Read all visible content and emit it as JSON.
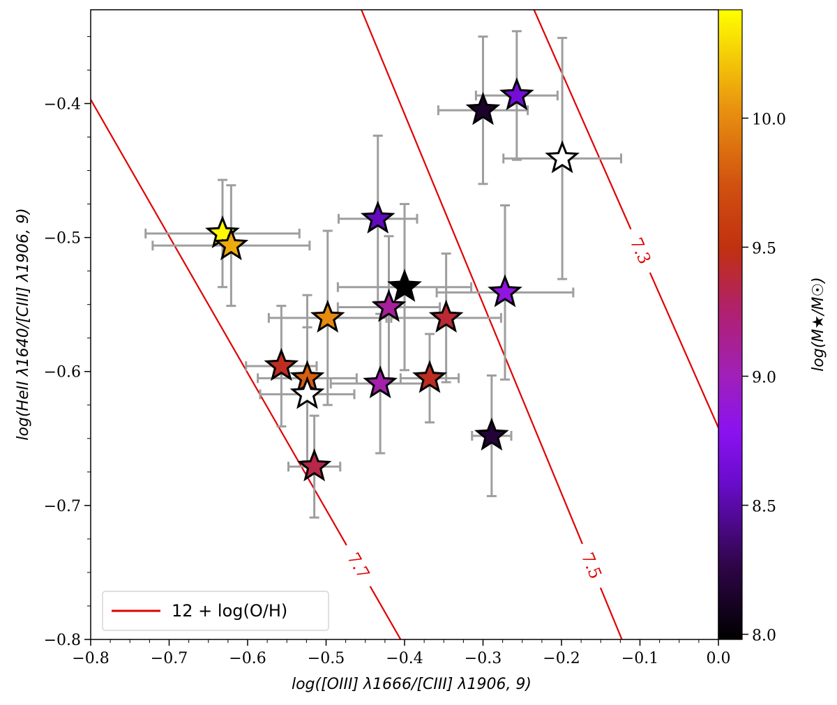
{
  "chart_data": {
    "type": "scatter",
    "xlabel": "log([OIII] λ1666/[CIII] λ1906, 9)",
    "ylabel": "log(HeII λ1640/[CIII] λ1906, 9)",
    "xlim": [
      -0.8,
      0.0
    ],
    "ylim": [
      -0.8,
      -0.33
    ],
    "x_ticks": [
      -0.8,
      -0.7,
      -0.6,
      -0.5,
      -0.4,
      -0.3,
      -0.2,
      -0.1,
      0.0
    ],
    "x_tick_labels": [
      "−0.8",
      "−0.7",
      "−0.6",
      "−0.5",
      "−0.4",
      "−0.3",
      "−0.2",
      "−0.1",
      "0.0"
    ],
    "y_ticks": [
      -0.8,
      -0.7,
      -0.6,
      -0.5,
      -0.4
    ],
    "y_tick_labels": [
      "−0.8",
      "−0.7",
      "−0.6",
      "−0.5",
      "−0.4"
    ],
    "colorbar": {
      "label": "log(M★/M☉)",
      "range": [
        7.98,
        10.42
      ],
      "ticks": [
        8.0,
        8.5,
        9.0,
        9.5,
        10.0
      ],
      "tick_labels": [
        "8.0",
        "8.5",
        "9.0",
        "9.5",
        "10.0"
      ],
      "colormap": "gnuplot",
      "colors": [
        "#000000",
        "#4a0a6a",
        "#8010e8",
        "#a020b0",
        "#b02070",
        "#c03010",
        "#d04010",
        "#e07010",
        "#f0b010",
        "#ffff00"
      ]
    },
    "legend": {
      "label": "12 + log(O/H)",
      "color": "#e00000",
      "position": "lower-left"
    },
    "contours": [
      {
        "label": "7.7",
        "points": [
          [
            -0.8,
            -0.397
          ],
          [
            -0.405,
            -0.8
          ]
        ]
      },
      {
        "label": "7.5",
        "points": [
          [
            -0.455,
            -0.33
          ],
          [
            -0.123,
            -0.8
          ]
        ]
      },
      {
        "label": "7.3",
        "points": [
          [
            -0.235,
            -0.33
          ],
          [
            0.0,
            -0.642
          ]
        ]
      }
    ],
    "points": [
      {
        "x": -0.632,
        "y": -0.497,
        "xerr": [
          0.098,
          0.098
        ],
        "yerr": [
          0.04,
          0.04
        ],
        "mass": 10.4
      },
      {
        "x": -0.621,
        "y": -0.506,
        "xerr": [
          0.1,
          0.1
        ],
        "yerr": [
          0.045,
          0.045
        ],
        "mass": 10.12
      },
      {
        "x": -0.434,
        "y": -0.486,
        "xerr": [
          0.05,
          0.05
        ],
        "yerr": [
          0.062,
          0.062
        ],
        "mass": 8.55
      },
      {
        "x": -0.3,
        "y": -0.405,
        "xerr": [
          0.057,
          0.057
        ],
        "yerr": [
          0.055,
          0.055
        ],
        "mass": 8.15
      },
      {
        "x": -0.257,
        "y": -0.394,
        "xerr": [
          0.052,
          0.052
        ],
        "yerr": [
          0.048,
          0.048
        ],
        "mass": 8.65
      },
      {
        "x": -0.199,
        "y": -0.441,
        "xerr": [
          0.075,
          0.075
        ],
        "yerr": [
          0.09,
          0.09
        ],
        "mass": null
      },
      {
        "x": -0.4,
        "y": -0.537,
        "xerr": [
          0.085,
          0.085
        ],
        "yerr": [
          0.062,
          0.062
        ],
        "mass": 7.98
      },
      {
        "x": -0.272,
        "y": -0.541,
        "xerr": [
          0.087,
          0.087
        ],
        "yerr": [
          0.065,
          0.065
        ],
        "mass": 8.85
      },
      {
        "x": -0.42,
        "y": -0.552,
        "xerr": [
          0.065,
          0.065
        ],
        "yerr": [
          0.053,
          0.053
        ],
        "mass": 9.1
      },
      {
        "x": -0.498,
        "y": -0.56,
        "xerr": [
          0.075,
          0.075
        ],
        "yerr": [
          0.065,
          0.065
        ],
        "mass": 10.0
      },
      {
        "x": -0.347,
        "y": -0.56,
        "xerr": [
          0.07,
          0.07
        ],
        "yerr": [
          0.048,
          0.048
        ],
        "mass": 9.4
      },
      {
        "x": -0.557,
        "y": -0.596,
        "xerr": [
          0.045,
          0.045
        ],
        "yerr": [
          0.045,
          0.045
        ],
        "mass": 9.45
      },
      {
        "x": -0.524,
        "y": -0.605,
        "xerr": [
          0.063,
          0.063
        ],
        "yerr": [
          0.062,
          0.062
        ],
        "mass": 9.8
      },
      {
        "x": -0.524,
        "y": -0.617,
        "xerr": [
          0.06,
          0.06
        ],
        "yerr": [
          0.05,
          0.05
        ],
        "mass": null
      },
      {
        "x": -0.431,
        "y": -0.609,
        "xerr": [
          0.063,
          0.063
        ],
        "yerr": [
          0.052,
          0.052
        ],
        "mass": 9.05
      },
      {
        "x": -0.368,
        "y": -0.605,
        "xerr": [
          0.037,
          0.037
        ],
        "yerr": [
          0.033,
          0.033
        ],
        "mass": 9.45
      },
      {
        "x": -0.289,
        "y": -0.648,
        "xerr": [
          0.025,
          0.025
        ],
        "yerr": [
          0.045,
          0.045
        ],
        "mass": 8.2
      },
      {
        "x": -0.515,
        "y": -0.671,
        "xerr": [
          0.033,
          0.033
        ],
        "yerr": [
          0.038,
          0.038
        ],
        "mass": 9.35
      }
    ]
  }
}
